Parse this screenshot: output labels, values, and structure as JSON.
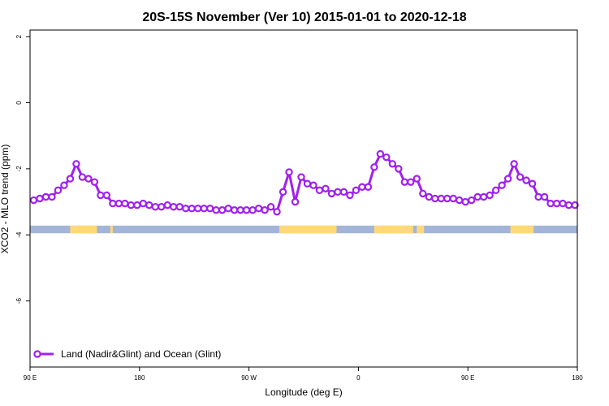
{
  "chart_data": {
    "type": "line",
    "title": "20S-15S November (Ver 10)   2015-01-01 to 2020-12-18",
    "xlabel": "Longitude (deg E)",
    "ylabel": "XCO2 - MLO trend (ppm)",
    "xlim": [
      90,
      540
    ],
    "ylim": [
      -8,
      2.2
    ],
    "x_ticks": [
      {
        "value": 90,
        "label": "90 E"
      },
      {
        "value": 180,
        "label": "180"
      },
      {
        "value": 270,
        "label": "90 W"
      },
      {
        "value": 360,
        "label": "0"
      },
      {
        "value": 450,
        "label": "90 E"
      },
      {
        "value": 540,
        "label": "180"
      }
    ],
    "y_ticks": [
      {
        "value": 2,
        "label": "2"
      },
      {
        "value": 0,
        "label": "0"
      },
      {
        "value": -2,
        "label": "-2"
      },
      {
        "value": -4,
        "label": "-4"
      },
      {
        "value": -6,
        "label": "-6"
      }
    ],
    "series": [
      {
        "name": "Land (Nadir&Glint) and Ocean (Glint)",
        "color": "#a020f0",
        "x": [
          93,
          98,
          103,
          108,
          113,
          118,
          123,
          128,
          133,
          138,
          143,
          148,
          153,
          158,
          163,
          168,
          173,
          178,
          183,
          188,
          193,
          198,
          203,
          208,
          213,
          218,
          223,
          228,
          233,
          238,
          243,
          248,
          253,
          258,
          263,
          268,
          273,
          278,
          283,
          288,
          293,
          298,
          303,
          308,
          313,
          318,
          323,
          328,
          333,
          338,
          343,
          348,
          353,
          358,
          363,
          368,
          373,
          378,
          383,
          388,
          393,
          398,
          403,
          408,
          413,
          418,
          423,
          428,
          433,
          438,
          443,
          448,
          453,
          458,
          463,
          468,
          473,
          478,
          483,
          488,
          493,
          498,
          503,
          508,
          513,
          518,
          523,
          528,
          533,
          538
        ],
        "y": [
          -2.95,
          -2.9,
          -2.85,
          -2.85,
          -2.65,
          -2.5,
          -2.3,
          -1.85,
          -2.25,
          -2.3,
          -2.4,
          -2.8,
          -2.8,
          -3.05,
          -3.05,
          -3.05,
          -3.1,
          -3.1,
          -3.05,
          -3.1,
          -3.15,
          -3.15,
          -3.1,
          -3.15,
          -3.15,
          -3.2,
          -3.2,
          -3.2,
          -3.2,
          -3.2,
          -3.25,
          -3.25,
          -3.2,
          -3.25,
          -3.25,
          -3.25,
          -3.25,
          -3.2,
          -3.25,
          -3.15,
          -3.3,
          -2.7,
          -2.1,
          -3.0,
          -2.25,
          -2.45,
          -2.5,
          -2.65,
          -2.6,
          -2.75,
          -2.7,
          -2.7,
          -2.8,
          -2.65,
          -2.55,
          -2.55,
          -1.95,
          -1.55,
          -1.65,
          -1.85,
          -2.0,
          -2.4,
          -2.4,
          -2.3,
          -2.75,
          -2.85,
          -2.9,
          -2.9,
          -2.9,
          -2.9,
          -2.95,
          -3.0,
          -2.95,
          -2.85,
          -2.85,
          -2.8,
          -2.65,
          -2.5,
          -2.3,
          -1.85,
          -2.25,
          -2.35,
          -2.45,
          -2.85,
          -2.85,
          -3.05,
          -3.05,
          -3.05,
          -3.1,
          -3.1
        ]
      }
    ],
    "surface_band": {
      "y_range": [
        -3.95,
        -3.72
      ],
      "ocean_color": "#a2b5d8",
      "land_color": "#ffd87a",
      "land_segments": [
        [
          123,
          145
        ],
        [
          156,
          158
        ],
        [
          295,
          342
        ],
        [
          373,
          405
        ],
        [
          408,
          414
        ],
        [
          485,
          504
        ]
      ]
    },
    "grid": false,
    "legend": {
      "position": "bottom-left"
    }
  }
}
